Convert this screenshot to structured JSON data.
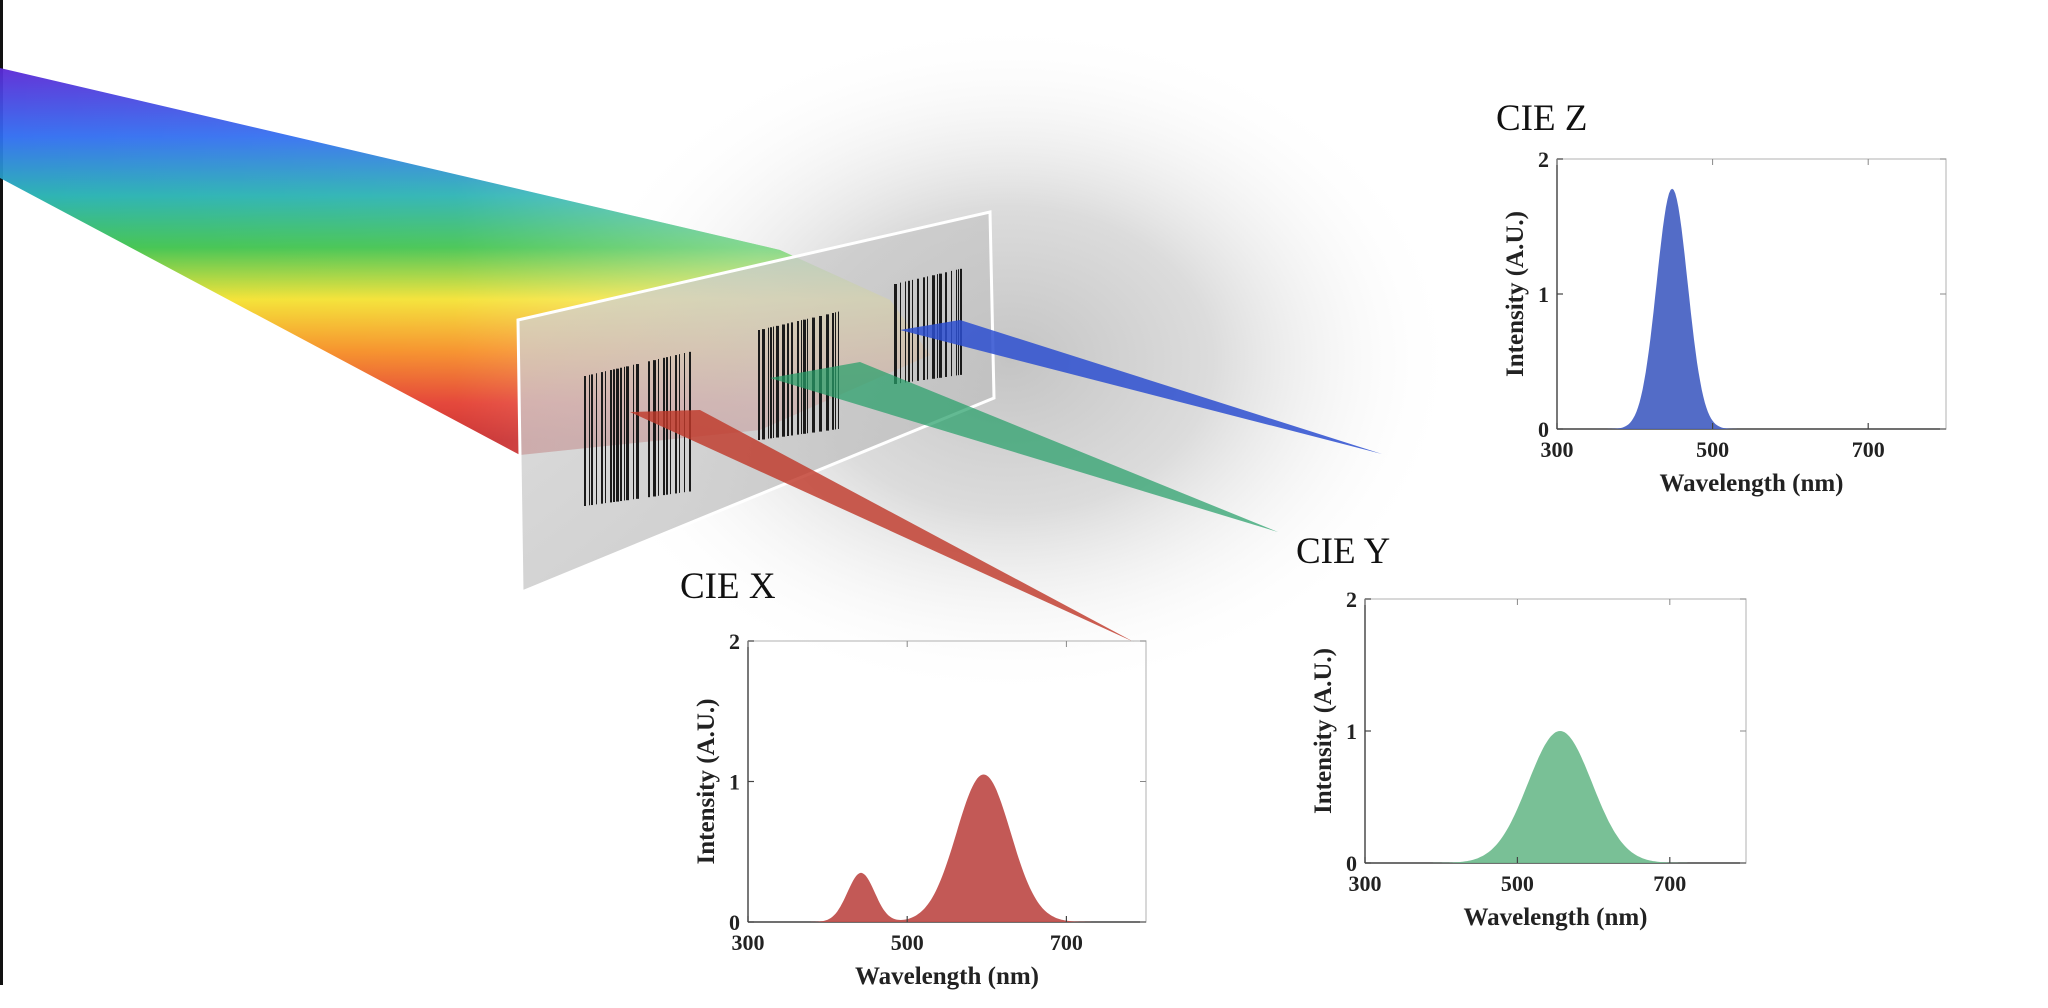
{
  "colors": {
    "red_beam": "#c0392b",
    "green_beam": "#27a06a",
    "blue_beam": "#2d4fd0",
    "x_fill": "#c0504d",
    "y_fill": "#72bd90",
    "z_fill": "#4a64c4"
  },
  "chart_data": [
    {
      "type": "area",
      "title": "CIE X",
      "xlabel": "Wavelength (nm)",
      "ylabel": "Intensity (A.U.)",
      "xlim": [
        300,
        800
      ],
      "ylim": [
        0,
        2
      ],
      "xticks": [
        "300",
        "500",
        "700"
      ],
      "yticks": [
        "0",
        "1",
        "2"
      ],
      "components": [
        {
          "center": 442,
          "amplitude": 0.35,
          "sigma": 17
        },
        {
          "center": 596,
          "amplitude": 1.05,
          "sigma": 34
        }
      ],
      "color": "x_fill"
    },
    {
      "type": "area",
      "title": "CIE Y",
      "xlabel": "Wavelength (nm)",
      "ylabel": "Intensity (A.U.)",
      "xlim": [
        300,
        800
      ],
      "ylim": [
        0,
        2
      ],
      "xticks": [
        "300",
        "500",
        "700"
      ],
      "yticks": [
        "0",
        "1",
        "2"
      ],
      "components": [
        {
          "center": 556,
          "amplitude": 1.0,
          "sigma": 42
        }
      ],
      "color": "y_fill"
    },
    {
      "type": "area",
      "title": "CIE Z",
      "xlabel": "Wavelength (nm)",
      "ylabel": "Intensity (A.U.)",
      "xlim": [
        300,
        800
      ],
      "ylim": [
        0,
        2
      ],
      "xticks": [
        "300",
        "500",
        "700"
      ],
      "yticks": [
        "0",
        "1",
        "2"
      ],
      "components": [
        {
          "center": 448,
          "amplitude": 1.78,
          "sigma": 20
        }
      ],
      "color": "z_fill"
    }
  ]
}
